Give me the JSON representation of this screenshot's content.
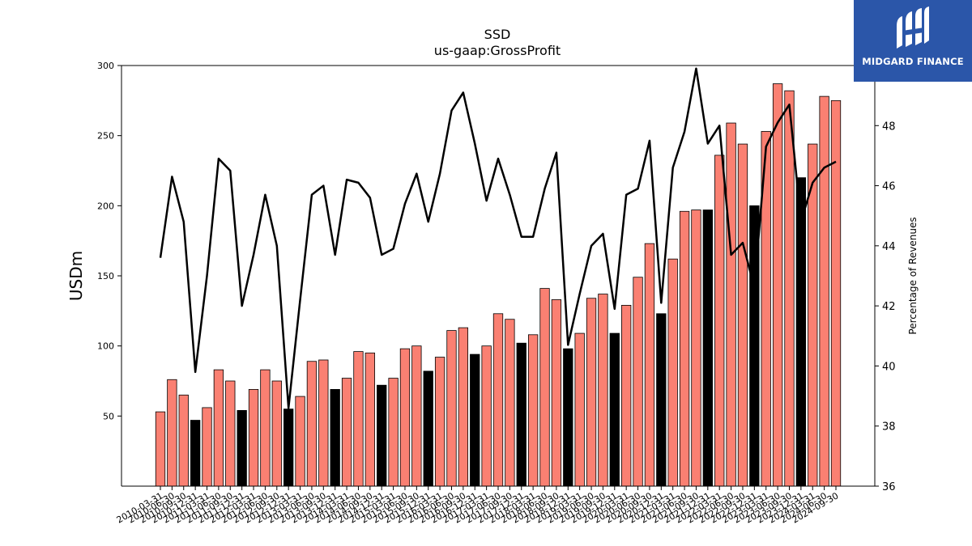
{
  "logo": {
    "text": "MIDGARD FINANCE"
  },
  "colors": {
    "bar": "#fa8072",
    "bar_q4": "#000000",
    "line": "#000000"
  },
  "chart_data": {
    "type": "bar",
    "title": "SSD",
    "subtitle": "us-gaap:GrossProfit",
    "ylabel": "USDm",
    "y2label": "Percentage of Revenues",
    "ylim": [
      0,
      300
    ],
    "y2lim": [
      36,
      50
    ],
    "yticks": [
      50,
      100,
      150,
      200,
      250,
      300
    ],
    "y2ticks": [
      36,
      38,
      40,
      42,
      44,
      46,
      48,
      50
    ],
    "categories": [
      "2010-03-31",
      "2010-06-30",
      "2010-09-30",
      "2010-12-31",
      "2011-03-31",
      "2011-06-30",
      "2011-09-30",
      "2011-12-31",
      "2012-03-31",
      "2012-06-30",
      "2012-09-30",
      "2012-12-31",
      "2013-03-31",
      "2013-06-30",
      "2013-09-30",
      "2013-12-31",
      "2014-03-31",
      "2014-06-30",
      "2014-09-30",
      "2014-12-31",
      "2015-03-31",
      "2015-06-30",
      "2015-09-30",
      "2015-12-31",
      "2016-03-31",
      "2016-06-30",
      "2016-09-30",
      "2016-12-31",
      "2017-03-31",
      "2017-06-30",
      "2017-09-30",
      "2017-12-31",
      "2018-03-31",
      "2018-06-30",
      "2018-09-30",
      "2018-12-31",
      "2019-03-31",
      "2019-06-30",
      "2019-09-30",
      "2019-12-31",
      "2020-03-31",
      "2020-06-30",
      "2020-09-30",
      "2020-12-31",
      "2021-03-31",
      "2021-06-30",
      "2021-09-30",
      "2021-12-31",
      "2022-03-31",
      "2022-06-30",
      "2022-09-30",
      "2022-12-31",
      "2023-03-31",
      "2023-06-30",
      "2023-09-30",
      "2023-12-31",
      "2024-03-31",
      "2024-06-30",
      "2024-09-30"
    ],
    "series": [
      {
        "kind": "bar",
        "values": [
          53,
          76,
          65,
          47,
          56,
          83,
          75,
          54,
          69,
          83,
          75,
          55,
          64,
          89,
          90,
          69,
          77,
          96,
          95,
          72,
          77,
          98,
          100,
          82,
          92,
          111,
          113,
          94,
          100,
          123,
          119,
          102,
          108,
          141,
          133,
          98,
          109,
          134,
          137,
          109,
          129,
          149,
          173,
          123,
          162,
          196,
          197,
          197,
          236,
          259,
          244,
          200,
          253,
          287,
          282,
          220,
          244,
          278,
          275
        ]
      },
      {
        "kind": "line",
        "axis": "y2",
        "values": [
          43.6,
          46.3,
          44.8,
          39.8,
          43.0,
          46.9,
          46.5,
          42.0,
          43.7,
          45.7,
          44.0,
          38.6,
          42.2,
          45.7,
          46.0,
          43.7,
          46.2,
          46.1,
          45.6,
          43.7,
          43.9,
          45.4,
          46.4,
          44.8,
          46.4,
          48.5,
          49.1,
          47.4,
          45.5,
          46.9,
          45.7,
          44.3,
          44.3,
          45.9,
          47.1,
          40.7,
          42.4,
          44.0,
          44.4,
          41.9,
          45.7,
          45.9,
          47.5,
          42.1,
          46.6,
          47.8,
          49.9,
          47.4,
          48.0,
          43.7,
          44.1,
          42.6,
          47.3,
          48.1,
          48.7,
          44.8,
          46.1,
          46.6,
          46.8
        ]
      }
    ],
    "q4_highlight": "black bars mark December quarters",
    "grid": false
  }
}
